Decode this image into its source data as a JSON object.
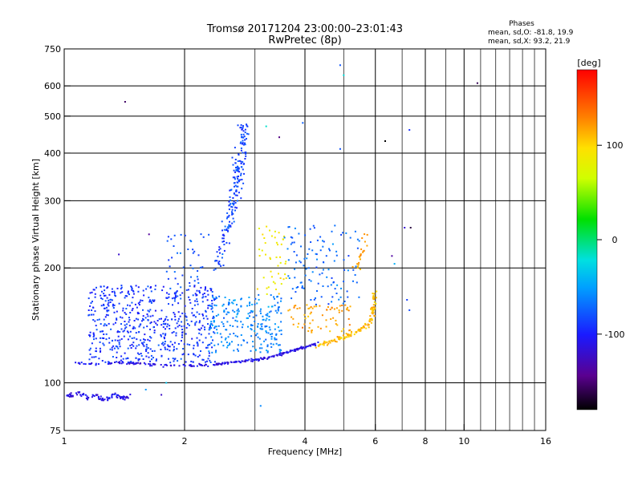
{
  "chart_data": {
    "type": "scatter",
    "title": "Tromsø 20171204 23:00:00–23:01:43",
    "subtitle": "RwPretec (8p)",
    "xlabel": "Frequency [MHz]",
    "ylabel": "Stationary phase Virtual Height [km]",
    "x_scale": "log",
    "y_scale": "log",
    "xlim": [
      1,
      16
    ],
    "ylim": [
      75,
      750
    ],
    "x_ticks": [
      1,
      2,
      4,
      6,
      8,
      10,
      16
    ],
    "x_minor_ticks": [
      3,
      5,
      7,
      9,
      11,
      12,
      13,
      14,
      15
    ],
    "y_ticks": [
      75,
      100,
      200,
      300,
      400,
      500,
      600,
      750
    ],
    "grid": true,
    "stats": {
      "heading": "Phases",
      "line_o": "mean, sd,O: -81.8, 19.9",
      "line_x": "mean, sd,X:  93.2, 21.9"
    },
    "colorbar": {
      "label": "[deg]",
      "range": [
        -180,
        180
      ],
      "ticks": [
        100,
        0,
        -100
      ]
    },
    "series": [
      {
        "type": "trace",
        "color_deg": -110,
        "points": [
          [
            1.02,
            93
          ],
          [
            1.05,
            92
          ],
          [
            1.1,
            94
          ],
          [
            1.15,
            91
          ],
          [
            1.2,
            93
          ],
          [
            1.25,
            90
          ],
          [
            1.3,
            92
          ],
          [
            1.35,
            93
          ],
          [
            1.4,
            91
          ],
          [
            1.45,
            92
          ]
        ],
        "spread": 0.02,
        "count": 90
      },
      {
        "type": "trace",
        "color_deg": -110,
        "points": [
          [
            1.05,
            113
          ],
          [
            1.2,
            112
          ],
          [
            1.4,
            113
          ],
          [
            1.6,
            112
          ],
          [
            1.8,
            111
          ],
          [
            2.0,
            111
          ],
          [
            2.2,
            111
          ],
          [
            2.4,
            112
          ],
          [
            2.6,
            113
          ],
          [
            2.8,
            114
          ],
          [
            3.0,
            115
          ],
          [
            3.2,
            116
          ],
          [
            3.4,
            118
          ],
          [
            3.6,
            120
          ],
          [
            3.8,
            122
          ],
          [
            4.0,
            124
          ],
          [
            4.3,
            127
          ]
        ],
        "spread": 0.012,
        "count": 240
      },
      {
        "type": "trace",
        "color_deg": 110,
        "points": [
          [
            4.3,
            125
          ],
          [
            4.6,
            128
          ],
          [
            4.9,
            131
          ],
          [
            5.2,
            134
          ],
          [
            5.5,
            138
          ],
          [
            5.8,
            143
          ],
          [
            5.9,
            150
          ],
          [
            5.95,
            160
          ],
          [
            6.0,
            175
          ]
        ],
        "spread": 0.02,
        "count": 130
      },
      {
        "type": "trace",
        "color_deg": 120,
        "points": [
          [
            5.3,
            190
          ],
          [
            5.5,
            210
          ],
          [
            5.6,
            230
          ],
          [
            5.7,
            250
          ]
        ],
        "spread": 0.03,
        "count": 22
      },
      {
        "type": "trace",
        "color_deg": -85,
        "points": [
          [
            2.4,
            200
          ],
          [
            2.55,
            250
          ],
          [
            2.65,
            300
          ],
          [
            2.7,
            340
          ],
          [
            2.75,
            380
          ],
          [
            2.8,
            430
          ],
          [
            2.82,
            470
          ]
        ],
        "spread": 0.05,
        "count": 190
      },
      {
        "type": "cloud",
        "color_deg": -90,
        "xrange": [
          1.15,
          2.4
        ],
        "yrange": [
          113,
          180
        ],
        "count": 600
      },
      {
        "type": "cloud",
        "color_deg": -60,
        "xrange": [
          2.3,
          3.5
        ],
        "yrange": [
          120,
          170
        ],
        "count": 240
      },
      {
        "type": "cloud",
        "color_deg": 90,
        "xrange": [
          3.0,
          3.6
        ],
        "yrange": [
          170,
          260
        ],
        "count": 45
      },
      {
        "type": "cloud",
        "color_deg": 120,
        "xrange": [
          3.6,
          5.2
        ],
        "yrange": [
          135,
          160
        ],
        "count": 70
      },
      {
        "type": "cloud",
        "color_deg": -70,
        "xrange": [
          3.5,
          5.5
        ],
        "yrange": [
          160,
          260
        ],
        "count": 120
      },
      {
        "type": "cloud",
        "color_deg": -80,
        "xrange": [
          1.8,
          2.3
        ],
        "yrange": [
          180,
          250
        ],
        "count": 40
      },
      {
        "type": "outliers",
        "color_deg": -100,
        "points": [
          [
            1.42,
            545
          ],
          [
            5.0,
            640
          ],
          [
            4.9,
            680
          ],
          [
            6.35,
            430
          ],
          [
            7.3,
            460
          ],
          [
            7.35,
            255
          ],
          [
            10.8,
            610
          ],
          [
            1.37,
            217
          ],
          [
            1.63,
            245
          ],
          [
            7.1,
            255
          ],
          [
            3.95,
            480
          ],
          [
            3.2,
            470
          ],
          [
            3.45,
            440
          ],
          [
            4.9,
            410
          ],
          [
            1.8,
            100
          ],
          [
            1.6,
            96
          ],
          [
            1.75,
            93
          ],
          [
            3.1,
            87
          ],
          [
            6.7,
            205
          ],
          [
            6.6,
            215
          ],
          [
            7.2,
            165
          ],
          [
            7.3,
            155
          ]
        ]
      }
    ]
  }
}
